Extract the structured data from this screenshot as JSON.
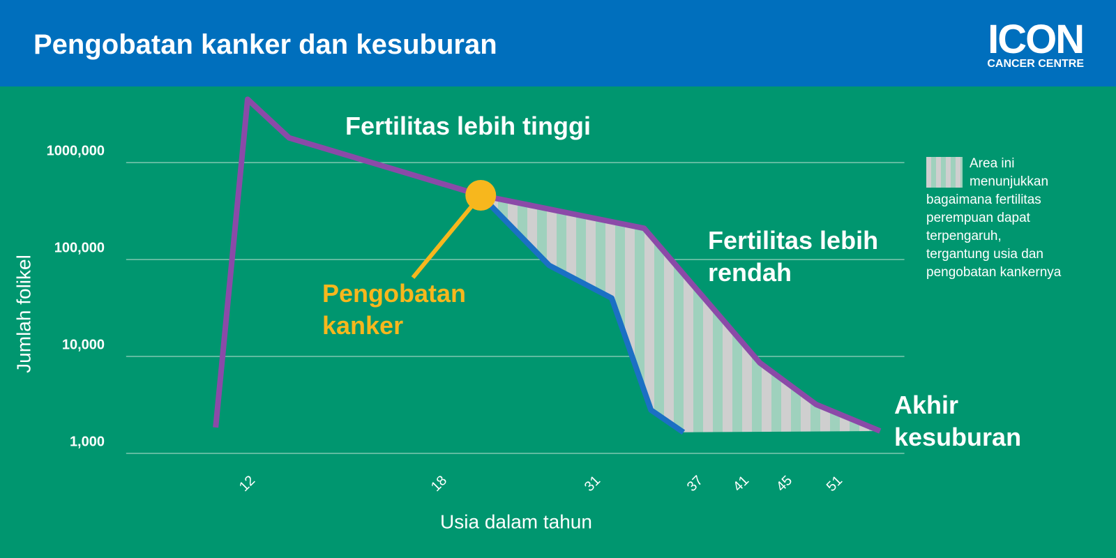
{
  "header": {
    "title": "Pengobatan kanker dan kesuburan",
    "logo": "ICON",
    "logo_sub": "CANCER CENTRE"
  },
  "chart_data": {
    "type": "line",
    "x_label": "Usia dalam tahun",
    "y_label": "Jumlah folikel",
    "log_y": true,
    "grid": true,
    "xlim": [
      8.2,
      59.3
    ],
    "xticks": [
      12,
      18,
      31,
      37,
      41,
      45,
      51
    ],
    "ylim": [
      1000,
      6000000
    ],
    "yticks": [
      {
        "value": 1000000,
        "label": "1000,000"
      },
      {
        "value": 100000,
        "label": "100,000"
      },
      {
        "value": 10000,
        "label": "10,000"
      },
      {
        "value": 1000,
        "label": "1,000"
      }
    ],
    "series": [
      {
        "color": "#8b4aa8",
        "x": [
          11,
          12,
          13.3,
          21.5,
          34,
          42.7,
          48.75,
          56.4
        ],
        "values": [
          1850,
          4500000,
          1800000,
          460000,
          210000,
          8600,
          3200,
          1700
        ]
      },
      {
        "color": "#1b70c4",
        "x": [
          21.5,
          27.3,
          32.1,
          34.4,
          36.3
        ],
        "values": [
          460000,
          87000,
          40000,
          2800,
          1650
        ]
      }
    ],
    "treatment": {
      "text": "Pengobatan kanker",
      "color": "#f7b71d"
    },
    "annotations": [
      "Fertilitas lebih tinggi",
      "Fertilitas lebih rendah",
      "Akhir kesuburan"
    ],
    "legend_text": "Area ini menunjukkan bagaimana fertilitas perempuan dapat terpengaruh, tergantung usia dan pengobatan kankernya"
  }
}
